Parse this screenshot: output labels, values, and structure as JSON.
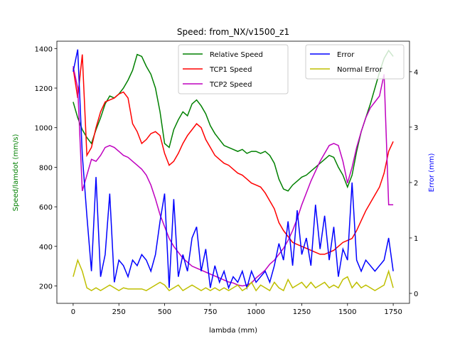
{
  "chart_data": {
    "type": "line",
    "title": "Speed: from_NX/v1500_z1",
    "xlabel": "lambda (mm)",
    "ylabel": "Speed/lamdot (mm/s)",
    "y2label": "Error (mm)",
    "xlim": [
      -89,
      1839
    ],
    "ylim": [
      112,
      1437
    ],
    "y2lim": [
      -0.18,
      4.55
    ],
    "xticks": [
      0,
      250,
      500,
      750,
      1000,
      1250,
      1500,
      1750
    ],
    "yticks": [
      200,
      400,
      600,
      800,
      1000,
      1200,
      1400
    ],
    "y2ticks": [
      0,
      1,
      2,
      3,
      4
    ],
    "x": [
      0,
      25,
      50,
      75,
      100,
      125,
      150,
      175,
      200,
      225,
      250,
      275,
      300,
      325,
      350,
      375,
      400,
      425,
      450,
      475,
      500,
      525,
      550,
      575,
      600,
      625,
      650,
      675,
      700,
      725,
      750,
      775,
      800,
      825,
      850,
      875,
      900,
      925,
      950,
      975,
      1000,
      1025,
      1050,
      1075,
      1100,
      1125,
      1150,
      1175,
      1200,
      1225,
      1250,
      1275,
      1300,
      1325,
      1350,
      1375,
      1400,
      1425,
      1450,
      1475,
      1500,
      1525,
      1550,
      1575,
      1600,
      1625,
      1650,
      1675,
      1700,
      1725,
      1750
    ],
    "series": [
      {
        "name": "Relative Speed",
        "color": "#008000",
        "axis": "y",
        "values": [
          1130,
          1050,
          990,
          950,
          920,
          990,
          1050,
          1120,
          1160,
          1150,
          1170,
          1200,
          1240,
          1290,
          1370,
          1360,
          1310,
          1270,
          1200,
          1080,
          920,
          900,
          990,
          1040,
          1080,
          1060,
          1120,
          1140,
          1110,
          1070,
          1010,
          970,
          940,
          910,
          900,
          890,
          880,
          890,
          870,
          880,
          880,
          870,
          880,
          860,
          820,
          740,
          690,
          680,
          710,
          730,
          750,
          760,
          780,
          800,
          820,
          840,
          860,
          850,
          800,
          760,
          700,
          760,
          880,
          980,
          1050,
          1120,
          1200,
          1280,
          1350,
          1390,
          1360
        ]
      },
      {
        "name": "TCP1 Speed",
        "color": "#ff0000",
        "axis": "y",
        "values": [
          1300,
          1150,
          1370,
          860,
          900,
          1000,
          1080,
          1130,
          1140,
          1150,
          1170,
          1180,
          1150,
          1020,
          980,
          920,
          940,
          970,
          980,
          960,
          870,
          810,
          830,
          870,
          920,
          960,
          990,
          1020,
          1000,
          940,
          900,
          860,
          840,
          820,
          810,
          790,
          770,
          760,
          740,
          720,
          710,
          700,
          670,
          630,
          590,
          520,
          480,
          450,
          420,
          410,
          400,
          390,
          380,
          370,
          360,
          360,
          370,
          380,
          400,
          420,
          430,
          440,
          480,
          530,
          580,
          620,
          660,
          700,
          770,
          880,
          930
        ]
      },
      {
        "name": "TCP2 Speed",
        "color": "#bf00bf",
        "axis": "y",
        "values": [
          1310,
          1200,
          680,
          760,
          840,
          830,
          860,
          900,
          910,
          900,
          880,
          860,
          850,
          830,
          810,
          790,
          760,
          710,
          640,
          560,
          500,
          440,
          400,
          370,
          340,
          320,
          300,
          290,
          280,
          270,
          260,
          250,
          240,
          230,
          220,
          215,
          205,
          200,
          205,
          215,
          240,
          260,
          280,
          310,
          330,
          360,
          390,
          430,
          480,
          540,
          610,
          670,
          730,
          780,
          830,
          870,
          910,
          920,
          910,
          830,
          720,
          800,
          900,
          980,
          1050,
          1100,
          1130,
          1160,
          1270,
          610,
          610
        ]
      },
      {
        "name": "Error",
        "color": "#0000ff",
        "axis": "y2",
        "values": [
          4.0,
          4.4,
          2.5,
          1.4,
          0.4,
          2.1,
          0.3,
          0.7,
          1.8,
          0.2,
          0.6,
          0.5,
          0.3,
          0.6,
          0.5,
          0.7,
          0.6,
          0.4,
          0.7,
          1.3,
          1.8,
          0.1,
          1.7,
          0.3,
          0.7,
          0.4,
          1.0,
          1.2,
          0.4,
          0.8,
          0.1,
          0.5,
          0.2,
          0.4,
          0.1,
          0.3,
          0.2,
          0.4,
          0.1,
          0.4,
          0.2,
          0.3,
          0.4,
          0.2,
          0.5,
          0.9,
          0.6,
          1.3,
          0.5,
          1.5,
          0.7,
          1.0,
          0.5,
          1.6,
          0.8,
          1.4,
          0.6,
          1.2,
          0.3,
          0.8,
          0.6,
          2.0,
          0.6,
          0.4,
          0.6,
          0.5,
          0.4,
          0.5,
          0.6,
          1.0,
          0.4
        ]
      },
      {
        "name": "Normal Error",
        "color": "#bfbf00",
        "axis": "y2",
        "values": [
          0.3,
          0.6,
          0.4,
          0.1,
          0.05,
          0.1,
          0.05,
          0.1,
          0.15,
          0.1,
          0.05,
          0.1,
          0.08,
          0.08,
          0.08,
          0.08,
          0.05,
          0.1,
          0.15,
          0.2,
          0.15,
          0.05,
          0.1,
          0.15,
          0.05,
          0.1,
          0.15,
          0.1,
          0.05,
          0.1,
          0.05,
          0.1,
          0.05,
          0.1,
          0.05,
          0.1,
          0.15,
          0.05,
          0.1,
          0.2,
          0.05,
          0.15,
          0.1,
          0.05,
          0.2,
          0.1,
          0.05,
          0.25,
          0.1,
          0.15,
          0.2,
          0.1,
          0.2,
          0.1,
          0.15,
          0.2,
          0.1,
          0.15,
          0.1,
          0.25,
          0.3,
          0.1,
          0.2,
          0.1,
          0.15,
          0.1,
          0.05,
          0.1,
          0.15,
          0.4,
          0.1
        ]
      }
    ]
  }
}
